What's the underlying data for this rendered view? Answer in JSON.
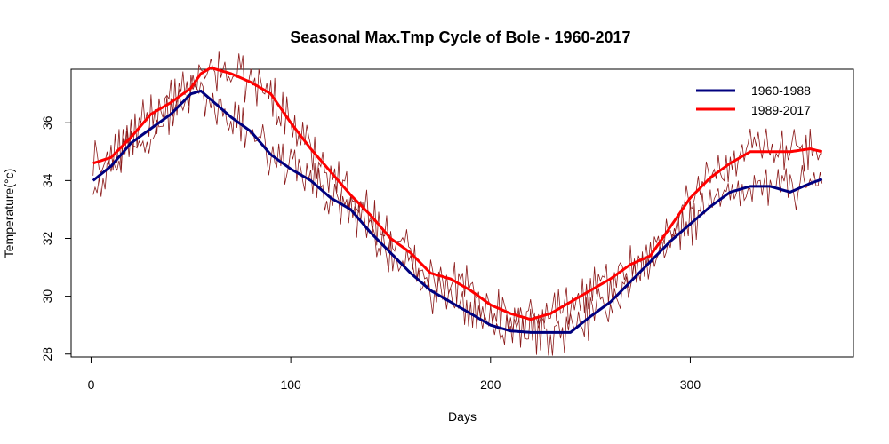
{
  "chart_data": {
    "type": "line",
    "title": "Seasonal Max.Tmp Cycle of Bole - 1960-2017",
    "xlabel": "Days",
    "ylabel": "Temperature(°c)",
    "xlim": [
      1,
      366
    ],
    "ylim": [
      27.9,
      37.85
    ],
    "xticks": [
      0,
      100,
      200,
      300
    ],
    "yticks": [
      28,
      30,
      32,
      34,
      36
    ],
    "grid": false,
    "legend_position": "top-right",
    "colors": {
      "series_1": "#00007f",
      "series_2": "#ff0000",
      "daily": "#8b1a1a"
    },
    "smoothed_knots_x": [
      1,
      10,
      20,
      30,
      40,
      50,
      55,
      60,
      70,
      80,
      90,
      100,
      110,
      120,
      130,
      140,
      150,
      160,
      170,
      180,
      190,
      200,
      210,
      220,
      230,
      240,
      250,
      260,
      270,
      280,
      290,
      300,
      310,
      320,
      330,
      340,
      350,
      360,
      366
    ],
    "series": [
      {
        "name": "1960-1988",
        "values": [
          34.0,
          34.5,
          35.3,
          35.8,
          36.3,
          37.0,
          37.1,
          36.8,
          36.2,
          35.7,
          34.9,
          34.4,
          34.0,
          33.4,
          33.0,
          32.2,
          31.5,
          30.8,
          30.2,
          29.8,
          29.4,
          29.0,
          28.8,
          28.75,
          28.75,
          28.75,
          29.3,
          29.8,
          30.5,
          31.2,
          31.9,
          32.5,
          33.1,
          33.6,
          33.8,
          33.8,
          33.6,
          33.9,
          34.05
        ]
      },
      {
        "name": "1989-2017",
        "values": [
          34.6,
          34.8,
          35.5,
          36.3,
          36.7,
          37.2,
          37.7,
          37.9,
          37.7,
          37.4,
          37.0,
          36.0,
          35.1,
          34.3,
          33.5,
          32.8,
          32.0,
          31.5,
          30.8,
          30.6,
          30.2,
          29.7,
          29.4,
          29.2,
          29.4,
          29.8,
          30.2,
          30.6,
          31.1,
          31.4,
          32.4,
          33.4,
          34.1,
          34.6,
          35.0,
          35.0,
          35.0,
          35.1,
          35.0
        ]
      }
    ]
  }
}
